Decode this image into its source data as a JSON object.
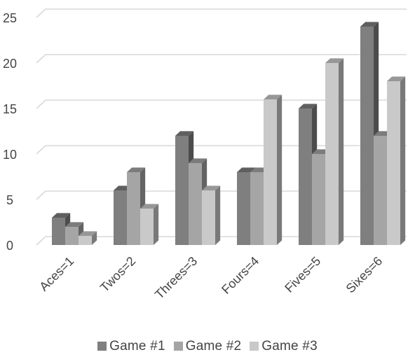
{
  "chart_data": {
    "type": "bar",
    "style": "3d-clustered-column",
    "categories": [
      "Aces=1",
      "Twos=2",
      "Threes=3",
      "Fours=4",
      "Fives=5",
      "Sixes=6"
    ],
    "series": [
      {
        "name": "Game #1",
        "values": [
          3,
          6,
          12,
          8,
          15,
          24
        ],
        "color": "#7f7f7f"
      },
      {
        "name": "Game #2",
        "values": [
          2,
          8,
          9,
          8,
          10,
          12
        ],
        "color": "#a5a5a5"
      },
      {
        "name": "Game #3",
        "values": [
          1,
          4,
          6,
          16,
          20,
          18
        ],
        "color": "#c9c9c9"
      }
    ],
    "ylim": [
      0,
      25
    ],
    "yticks": [
      "0",
      "5",
      "10",
      "15",
      "20",
      "25"
    ],
    "grid": true,
    "legend_position": "bottom"
  }
}
